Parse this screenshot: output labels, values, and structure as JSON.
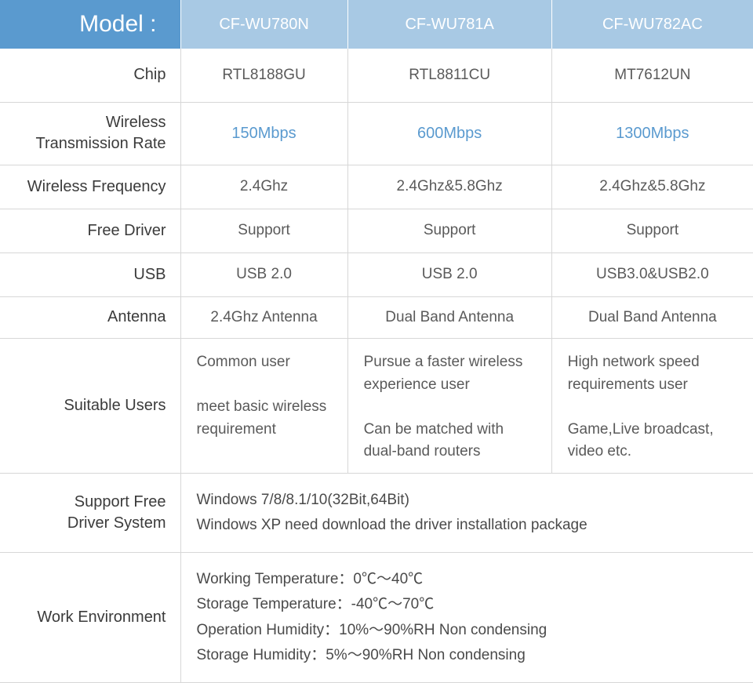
{
  "header": {
    "label": "Model :",
    "cols": [
      "CF-WU780N",
      "CF-WU781A",
      "CF-WU782AC"
    ]
  },
  "rows": {
    "chip": {
      "label": "Chip",
      "vals": [
        "RTL8188GU",
        "RTL8811CU",
        "MT7612UN"
      ]
    },
    "rate": {
      "label": "Wireless\nTransmission Rate",
      "vals": [
        "150Mbps",
        "600Mbps",
        "1300Mbps"
      ]
    },
    "freq": {
      "label": "Wireless Frequency",
      "vals": [
        "2.4Ghz",
        "2.4Ghz&5.8Ghz",
        "2.4Ghz&5.8Ghz"
      ]
    },
    "driver": {
      "label": "Free Driver",
      "vals": [
        "Support",
        "Support",
        "Support"
      ]
    },
    "usb": {
      "label": "USB",
      "vals": [
        "USB 2.0",
        "USB 2.0",
        "USB3.0&USB2.0"
      ]
    },
    "ant": {
      "label": "Antenna",
      "vals": [
        "2.4Ghz Antenna",
        "Dual Band Antenna",
        "Dual Band Antenna"
      ]
    },
    "users": {
      "label": "Suitable Users",
      "vals": [
        "Common user\n\nmeet basic wireless requirement",
        "Pursue a faster wireless experience user\n\nCan be matched with dual-band routers",
        "High network speed requirements user\n\nGame,Live broadcast, video etc."
      ]
    },
    "sys": {
      "label": "Support Free\nDriver System",
      "merged": "Windows 7/8/8.1/10(32Bit,64Bit)\nWindows XP need download the driver installation package"
    },
    "env": {
      "label": "Work Environment",
      "merged": "Working Temperature：0℃～40℃\nStorage Temperature：-40℃～70℃\nOperation Humidity：10%～90%RH Non condensing\nStorage Humidity：5%～90%RH Non condensing"
    }
  },
  "colors": {
    "header_bg": "#5a9acf",
    "subheader_bg": "#a8c9e4",
    "header_text": "#ffffff",
    "accent": "#5a9acf",
    "border": "#d7d7d7",
    "text": "#4a4a4a"
  }
}
